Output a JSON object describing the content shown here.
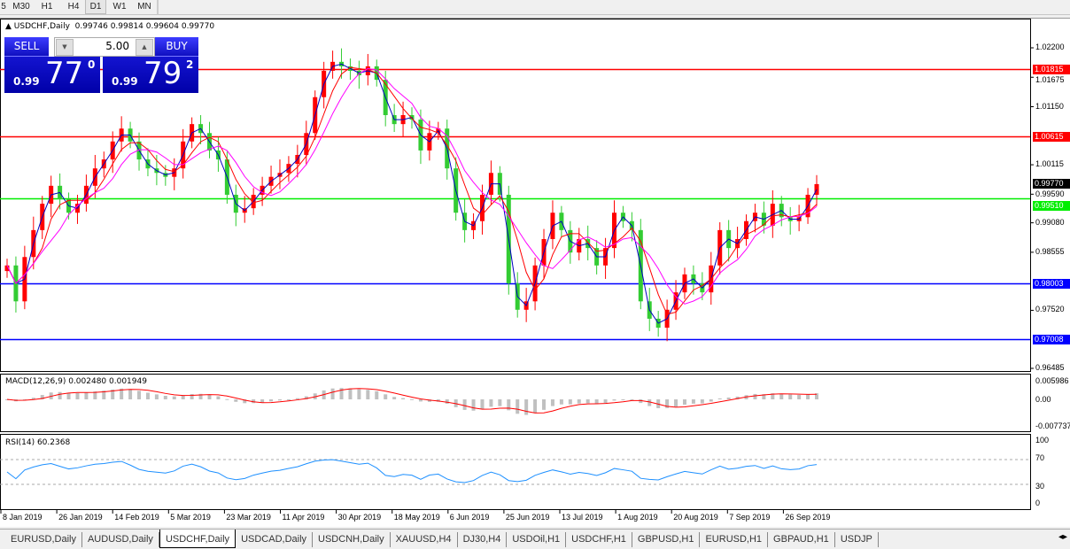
{
  "timeframes": [
    {
      "label": "5",
      "active": false
    },
    {
      "label": "M30",
      "active": false
    },
    {
      "label": "H1",
      "active": false
    },
    {
      "label": "H4",
      "active": false
    },
    {
      "label": "D1",
      "active": true
    },
    {
      "label": "W1",
      "active": false
    },
    {
      "label": "MN",
      "active": false
    }
  ],
  "chart": {
    "header": "USDCHF,Daily  0.99746 0.99814 0.99604 0.99770",
    "symbol": "USDCHF",
    "timeframe": "Daily",
    "ohlc": {
      "open": 0.99746,
      "high": 0.99814,
      "low": 0.99604,
      "close": 0.9977
    },
    "colors": {
      "bull": "#ff0000",
      "bear": "#33cc33",
      "ma_fast": "#0000c0",
      "ma_mid": "#ff0000",
      "ma_slow": "#ff00ff",
      "macd_hist": "#c0c0c0",
      "macd_signal": "#ff0000",
      "rsi": "#1e90ff"
    }
  },
  "trade_panel": {
    "sell_label": "SELL",
    "buy_label": "BUY",
    "lot": "5.00",
    "sell": {
      "prefix": "0.99",
      "big": "77",
      "sup": "0"
    },
    "buy": {
      "prefix": "0.99",
      "big": "79",
      "sup": "2"
    }
  },
  "price_axis": {
    "ticks": [
      "1.02200",
      "1.01675",
      "1.01150",
      "1.00115",
      "0.99590",
      "0.99080",
      "0.98555",
      "0.97520",
      "0.96485"
    ],
    "current": "0.99770"
  },
  "levels": [
    {
      "label": "1.01815",
      "price": 1.01815,
      "color": "#ff0000"
    },
    {
      "label": "1.00615",
      "price": 1.00615,
      "color": "#ff0000"
    },
    {
      "label": "0.99510",
      "price": 0.9951,
      "color": "#00ee00"
    },
    {
      "label": "0.98003",
      "price": 0.98003,
      "color": "#0000ff"
    },
    {
      "label": "0.97008",
      "price": 0.97008,
      "color": "#0000ff"
    }
  ],
  "macd": {
    "label": "MACD(12,26,9) 0.002480 0.001949",
    "ticks": [
      "0.005986",
      "0.00",
      "-0.007737"
    ]
  },
  "rsi": {
    "label": "RSI(14) 60.2368",
    "ticks": [
      "100",
      "70",
      "30",
      "0"
    ],
    "levels": [
      70,
      30
    ]
  },
  "dates": [
    "8 Jan 2019",
    "26 Jan 2019",
    "14 Feb 2019",
    "5 Mar 2019",
    "23 Mar 2019",
    "11 Apr 2019",
    "30 Apr 2019",
    "18 May 2019",
    "6 Jun 2019",
    "25 Jun 2019",
    "13 Jul 2019",
    "1 Aug 2019",
    "20 Aug 2019",
    "7 Sep 2019",
    "26 Sep 2019"
  ],
  "chart_data": {
    "type": "candlestick",
    "ylim": [
      0.96485,
      1.022
    ],
    "closes": [
      0.9832,
      0.9768,
      0.9847,
      0.9895,
      0.9942,
      0.9974,
      0.995,
      0.9926,
      0.9942,
      0.9974,
      1.0005,
      1.0021,
      1.0053,
      1.0076,
      1.0053,
      1.0021,
      1.0005,
      0.9997,
      0.999,
      1.0005,
      1.0053,
      1.0084,
      1.0068,
      1.0037,
      1.0021,
      0.9958,
      0.9926,
      0.9934,
      0.9958,
      0.9974,
      0.999,
      0.9997,
      1.0013,
      1.0029,
      1.0068,
      1.0132,
      1.0179,
      1.0195,
      1.0187,
      1.0179,
      1.0171,
      1.0187,
      1.0163,
      1.01,
      1.0084,
      1.01,
      1.0092,
      1.0037,
      1.0068,
      1.0076,
      1.0005,
      0.9926,
      0.9895,
      0.9911,
      0.9958,
      0.9997,
      0.9958,
      0.98,
      0.9753,
      0.9768,
      0.9832,
      0.9879,
      0.9926,
      0.9895,
      0.9855,
      0.9879,
      0.9863,
      0.9832,
      0.9863,
      0.9926,
      0.9911,
      0.9895,
      0.9768,
      0.9737,
      0.9721,
      0.9753,
      0.9784,
      0.9816,
      0.98,
      0.9784,
      0.9832,
      0.9895,
      0.9863,
      0.9879,
      0.9911,
      0.9926,
      0.9903,
      0.9942,
      0.9918,
      0.9911,
      0.9918,
      0.9958,
      0.9977
    ]
  },
  "tabs": [
    {
      "label": "EURUSD,Daily"
    },
    {
      "label": "AUDUSD,Daily"
    },
    {
      "label": "USDCHF,Daily",
      "active": true
    },
    {
      "label": "USDCAD,Daily"
    },
    {
      "label": "USDCNH,Daily"
    },
    {
      "label": "XAUUSD,H4"
    },
    {
      "label": "DJ30,H4"
    },
    {
      "label": "USDOil,H1"
    },
    {
      "label": "USDCHF,H1"
    },
    {
      "label": "GBPUSD,H1"
    },
    {
      "label": "EURUSD,H1"
    },
    {
      "label": "GBPAUD,H1"
    },
    {
      "label": "USDJP"
    }
  ]
}
